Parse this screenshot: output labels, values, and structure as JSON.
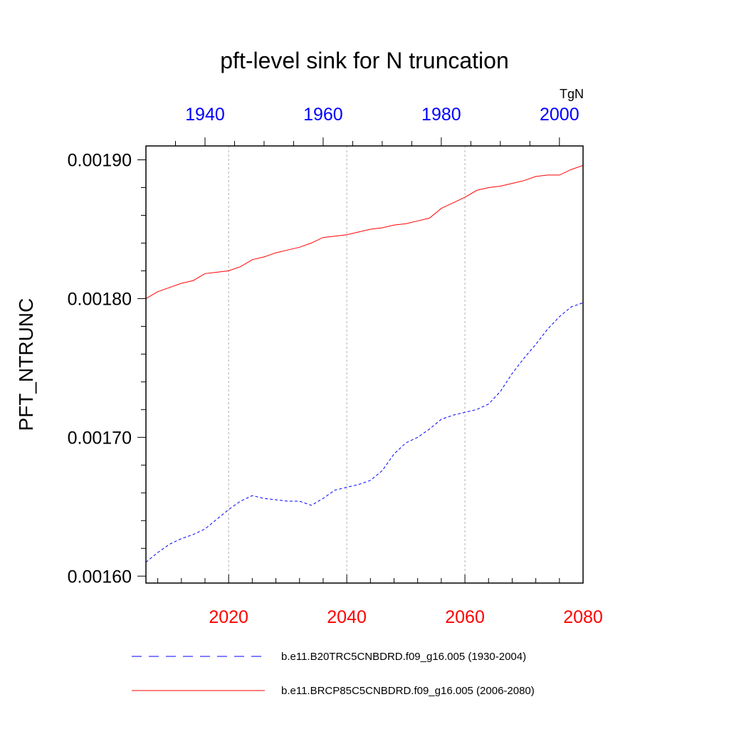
{
  "chart_data": {
    "type": "line",
    "title": "pft-level sink for N truncation",
    "ylabel": "PFT_NTRUNC",
    "units": "TgN",
    "ylim": [
      0.001595,
      0.00191
    ],
    "yticks": [
      0.0016,
      0.0017,
      0.0018,
      0.0019
    ],
    "ytick_labels": [
      "0.00160",
      "0.00170",
      "0.00180",
      "0.00190"
    ],
    "grid": "vertical dotted lines at bottom-axis major ticks",
    "legend_position": "bottom",
    "bottom_axis": {
      "color": "#ff0000",
      "range": [
        2006,
        2080
      ],
      "ticks": [
        2020,
        2040,
        2060,
        2080
      ],
      "tick_labels": [
        "2020",
        "2040",
        "2060",
        "2080"
      ]
    },
    "top_axis": {
      "color": "#0000ff",
      "range": [
        1930,
        2004
      ],
      "ticks": [
        1940,
        1960,
        1980,
        2000
      ],
      "tick_labels": [
        "1940",
        "1960",
        "1980",
        "2000"
      ]
    },
    "series": [
      {
        "name": "b.e11.B20TRC5CNBDRD.f09_g16.005 (1930-2004)",
        "color": "#0000ff",
        "style": "dashed",
        "axis": "top",
        "x": [
          1930,
          1932,
          1934,
          1936,
          1938,
          1940,
          1942,
          1944,
          1946,
          1948,
          1950,
          1952,
          1954,
          1956,
          1958,
          1960,
          1962,
          1964,
          1966,
          1968,
          1970,
          1972,
          1974,
          1976,
          1978,
          1980,
          1982,
          1984,
          1986,
          1988,
          1990,
          1992,
          1994,
          1996,
          1998,
          2000,
          2002,
          2004
        ],
        "values": [
          0.00161,
          0.001617,
          0.001623,
          0.001627,
          0.00163,
          0.001634,
          0.001641,
          0.001648,
          0.001654,
          0.001658,
          0.001656,
          0.001655,
          0.001654,
          0.001654,
          0.001651,
          0.001656,
          0.001662,
          0.001664,
          0.001666,
          0.001669,
          0.001676,
          0.001688,
          0.001696,
          0.0017,
          0.001706,
          0.001713,
          0.001716,
          0.001718,
          0.00172,
          0.001724,
          0.001733,
          0.001746,
          0.001757,
          0.001767,
          0.001778,
          0.001787,
          0.001794,
          0.001797
        ]
      },
      {
        "name": "b.e11.BRCP85C5CNBDRD.f09_g16.005 (2006-2080)",
        "color": "#ff0000",
        "style": "solid",
        "axis": "bottom",
        "x": [
          2006,
          2008,
          2010,
          2012,
          2014,
          2016,
          2018,
          2020,
          2022,
          2024,
          2026,
          2028,
          2030,
          2032,
          2034,
          2036,
          2038,
          2040,
          2042,
          2044,
          2046,
          2048,
          2050,
          2052,
          2054,
          2056,
          2058,
          2060,
          2062,
          2064,
          2066,
          2068,
          2070,
          2072,
          2074,
          2076,
          2078,
          2080
        ],
        "values": [
          0.0018,
          0.001805,
          0.001808,
          0.001811,
          0.001813,
          0.001818,
          0.001819,
          0.00182,
          0.001823,
          0.001828,
          0.00183,
          0.001833,
          0.001835,
          0.001837,
          0.00184,
          0.001844,
          0.001845,
          0.001846,
          0.001848,
          0.00185,
          0.001851,
          0.001853,
          0.001854,
          0.001856,
          0.001858,
          0.001865,
          0.001869,
          0.001873,
          0.001878,
          0.00188,
          0.001881,
          0.001883,
          0.001885,
          0.001888,
          0.001889,
          0.001889,
          0.001893,
          0.001896
        ]
      }
    ]
  }
}
